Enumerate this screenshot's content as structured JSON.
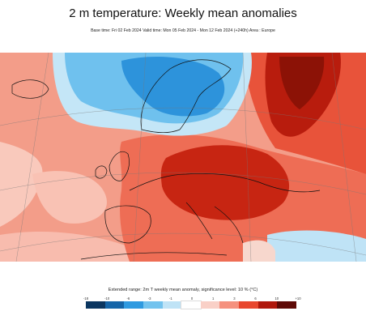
{
  "title": "2 m temperature: Weekly mean anomalies",
  "subtitle": "Base time: Fri 02 Feb 2024 Valid time: Mon 05 Feb 2024 - Mon 12 Feb 2024 (+240h) Area : Europe",
  "legend": {
    "title": "Extended range: 2m T weekly mean anomaly, significance level: 10 % (°C)",
    "ticks": [
      "-18",
      "-10",
      "-6",
      "-3",
      "-1",
      "0",
      "1",
      "3",
      "6",
      "10",
      "+10"
    ],
    "colors": [
      "#0b3660",
      "#1565a8",
      "#2f9ae0",
      "#73c3ee",
      "#bfe3f6",
      "#ffffff",
      "#f9d0c7",
      "#f5917e",
      "#e8472e",
      "#b0180c",
      "#5e0a06"
    ]
  },
  "map": {
    "colors": {
      "sea_warm": "#f6a593",
      "warm_light": "#f9c9bc",
      "warm_mid": "#ef6c54",
      "warm_strong": "#d9311d",
      "warm_extreme": "#9e1608",
      "cold_light": "#c4e6f7",
      "cold_mid": "#6fc1ee",
      "cold_strong": "#2d93db",
      "neutral": "#ffffff"
    }
  }
}
